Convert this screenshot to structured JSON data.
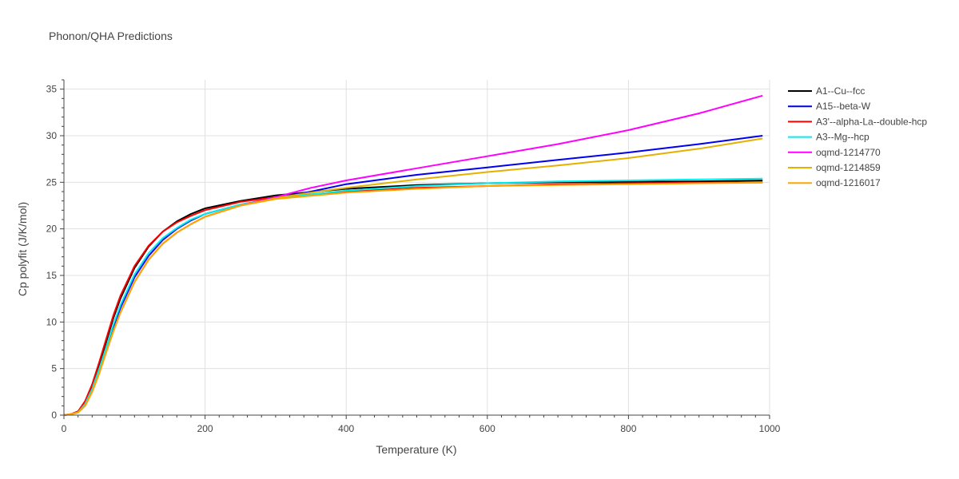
{
  "chart_data": {
    "type": "line",
    "title": "Phonon/QHA Predictions",
    "xlabel": "Temperature (K)",
    "ylabel": "Cp polyfit (J/K/mol)",
    "xlim": [
      0,
      1000
    ],
    "ylim": [
      0,
      36
    ],
    "xticks": [
      0,
      200,
      400,
      600,
      800,
      1000
    ],
    "yticks": [
      0,
      5,
      10,
      15,
      20,
      25,
      30,
      35
    ],
    "grid": true,
    "legend_position": "right",
    "series": [
      {
        "name": "A1--Cu--fcc",
        "color": "#000000",
        "x": [
          0,
          10,
          20,
          30,
          40,
          50,
          60,
          70,
          80,
          100,
          120,
          140,
          160,
          180,
          200,
          250,
          300,
          400,
          500,
          600,
          700,
          800,
          900,
          990
        ],
        "y": [
          0,
          0.1,
          0.4,
          1.4,
          3.1,
          5.4,
          7.9,
          10.4,
          12.5,
          15.8,
          18.1,
          19.7,
          20.8,
          21.6,
          22.2,
          23.0,
          23.6,
          24.3,
          24.7,
          24.9,
          25.0,
          25.05,
          25.1,
          25.2
        ]
      },
      {
        "name": "A15--beta-W",
        "color": "#0000ee",
        "x": [
          0,
          10,
          20,
          30,
          40,
          50,
          60,
          70,
          80,
          100,
          120,
          140,
          160,
          180,
          200,
          250,
          300,
          350,
          400,
          500,
          600,
          700,
          800,
          900,
          990
        ],
        "y": [
          0,
          0.1,
          0.3,
          1.1,
          2.7,
          4.8,
          7.1,
          9.4,
          11.5,
          14.8,
          17.1,
          18.8,
          20.0,
          20.9,
          21.6,
          22.6,
          23.3,
          24.0,
          24.8,
          25.8,
          26.6,
          27.4,
          28.2,
          29.1,
          30.0
        ]
      },
      {
        "name": "A3'--alpha-La--double-hcp",
        "color": "#ff0000",
        "x": [
          0,
          10,
          20,
          30,
          40,
          50,
          60,
          70,
          80,
          100,
          120,
          140,
          160,
          180,
          200,
          250,
          300,
          400,
          500,
          600,
          700,
          800,
          900,
          990
        ],
        "y": [
          0,
          0.1,
          0.4,
          1.5,
          3.3,
          5.7,
          8.2,
          10.7,
          12.8,
          16.0,
          18.2,
          19.7,
          20.7,
          21.4,
          22.0,
          22.9,
          23.4,
          24.0,
          24.4,
          24.6,
          24.8,
          24.9,
          24.95,
          25.0
        ]
      },
      {
        "name": "A3--Mg--hcp",
        "color": "#00eeee",
        "x": [
          0,
          10,
          20,
          30,
          40,
          50,
          60,
          70,
          80,
          100,
          120,
          140,
          160,
          180,
          200,
          250,
          300,
          400,
          500,
          600,
          700,
          800,
          900,
          990
        ],
        "y": [
          0,
          0.1,
          0.3,
          1.2,
          2.8,
          5.0,
          7.3,
          9.7,
          11.8,
          15.1,
          17.4,
          19.0,
          20.1,
          21.0,
          21.6,
          22.6,
          23.3,
          24.1,
          24.6,
          24.9,
          25.1,
          25.2,
          25.3,
          25.4
        ]
      },
      {
        "name": "oqmd-1214770",
        "color": "#ff00ff",
        "x": [
          0,
          10,
          20,
          30,
          40,
          50,
          60,
          70,
          80,
          100,
          120,
          140,
          160,
          180,
          200,
          250,
          300,
          350,
          400,
          500,
          600,
          700,
          800,
          900,
          990
        ],
        "y": [
          0,
          0.1,
          0.3,
          1.0,
          2.5,
          4.5,
          6.8,
          9.0,
          11.0,
          14.3,
          16.7,
          18.4,
          19.6,
          20.5,
          21.3,
          22.5,
          23.4,
          24.4,
          25.2,
          26.5,
          27.8,
          29.1,
          30.6,
          32.4,
          34.3
        ]
      },
      {
        "name": "oqmd-1214859",
        "color": "#e6b000",
        "x": [
          0,
          10,
          20,
          30,
          40,
          50,
          60,
          70,
          80,
          100,
          120,
          140,
          160,
          180,
          200,
          250,
          300,
          350,
          400,
          500,
          600,
          700,
          800,
          900,
          990
        ],
        "y": [
          0,
          0.1,
          0.3,
          1.0,
          2.5,
          4.5,
          6.8,
          9.0,
          11.0,
          14.3,
          16.7,
          18.4,
          19.6,
          20.5,
          21.3,
          22.5,
          23.3,
          23.9,
          24.4,
          25.3,
          26.1,
          26.8,
          27.6,
          28.6,
          29.7
        ]
      },
      {
        "name": "oqmd-1216017",
        "color": "#ffa500",
        "x": [
          0,
          10,
          20,
          30,
          40,
          50,
          60,
          70,
          80,
          100,
          120,
          140,
          160,
          180,
          200,
          250,
          300,
          400,
          500,
          600,
          700,
          800,
          900,
          990
        ],
        "y": [
          0,
          0.1,
          0.3,
          1.0,
          2.5,
          4.5,
          6.8,
          9.0,
          11.0,
          14.3,
          16.7,
          18.4,
          19.6,
          20.5,
          21.3,
          22.5,
          23.2,
          23.9,
          24.3,
          24.6,
          24.7,
          24.8,
          24.9,
          24.95
        ]
      }
    ]
  }
}
